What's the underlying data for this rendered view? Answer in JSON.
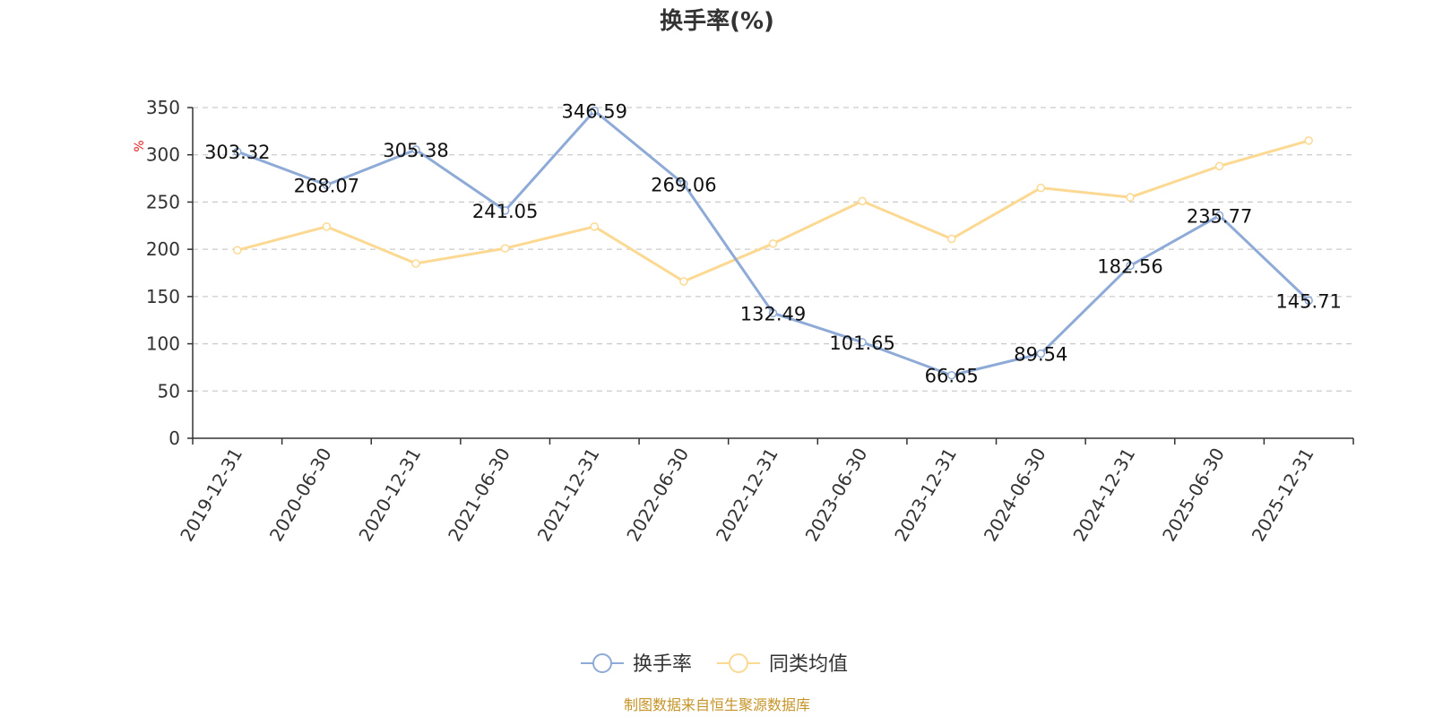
{
  "chart_data": {
    "type": "line",
    "title": "换手率(%)",
    "ylabel": "%",
    "xlabel": "",
    "ylim": [
      0,
      350
    ],
    "yticks": [
      0,
      50,
      100,
      150,
      200,
      250,
      300,
      350
    ],
    "grid": true,
    "legend_position": "bottom-center",
    "categories": [
      "2019-12-31",
      "2020-06-30",
      "2020-12-31",
      "2021-06-30",
      "2021-12-31",
      "2022-06-30",
      "2022-12-31",
      "2023-06-30",
      "2023-12-31",
      "2024-06-30",
      "2024-12-31",
      "2025-06-30",
      "2025-12-31"
    ],
    "series": [
      {
        "name": "换手率",
        "color": "#8eaad6",
        "values": [
          303.32,
          268.07,
          305.38,
          241.05,
          346.59,
          269.06,
          132.49,
          101.65,
          66.65,
          89.54,
          182.56,
          235.77,
          145.71
        ],
        "labels": [
          "303.32",
          "268.07",
          "305.38",
          "241.05",
          "346.59",
          "269.06",
          "132.49",
          "101.65",
          "66.65",
          "89.54",
          "182.56",
          "235.77",
          "145.71"
        ],
        "show_labels": true
      },
      {
        "name": "同类均值",
        "color": "#fcd992",
        "values": [
          199,
          224,
          185,
          201,
          224,
          166,
          206,
          251,
          211,
          265,
          255,
          288,
          315
        ],
        "show_labels": false
      }
    ],
    "unit_color": "#e02020",
    "source": "制图数据来自恒生聚源数据库",
    "source_color": "#c49428"
  }
}
